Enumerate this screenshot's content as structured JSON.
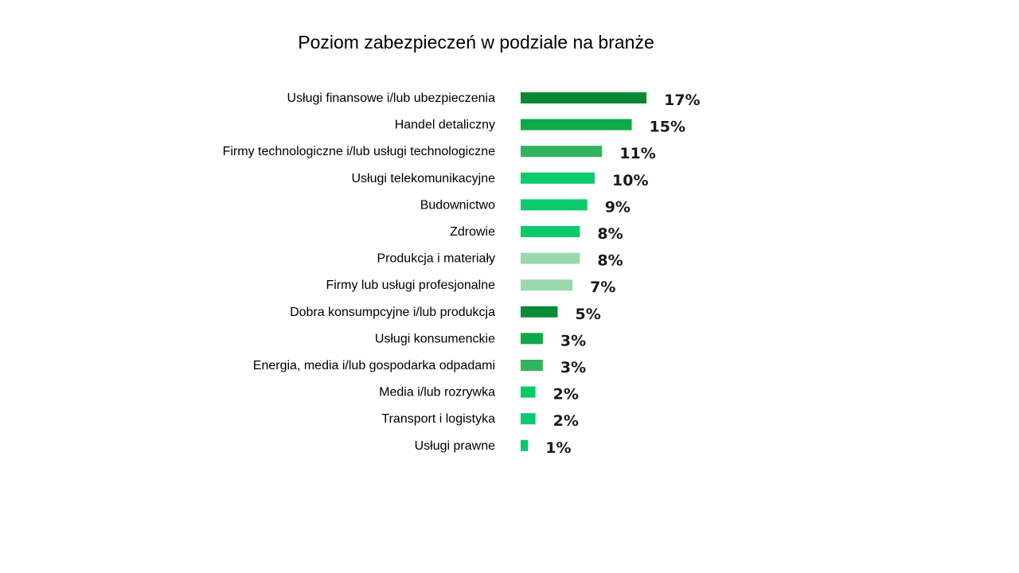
{
  "chart_data": {
    "type": "bar",
    "orientation": "horizontal",
    "title": "Poziom zabezpieczeń w podziale na branże",
    "xlabel": "",
    "ylabel": "",
    "xlim": [
      0,
      17
    ],
    "grid": false,
    "legend": "none",
    "categories": [
      "Usługi finansowe i/lub ubezpieczenia",
      "Handel detaliczny",
      "Firmy technologiczne i/lub usługi technologiczne",
      "Usługi telekomunikacyjne",
      "Budownictwo",
      "Zdrowie",
      "Produkcja i materiały",
      "Firmy lub usługi profesjonalne",
      "Dobra konsumpcyjne i/lub produkcja",
      "Usługi konsumenckie",
      "Energia, media i/lub gospodarka odpadami",
      "Media i/lub rozrywka",
      "Transport i logistyka",
      "Usługi prawne"
    ],
    "values": [
      17,
      15,
      11,
      10,
      9,
      8,
      8,
      7,
      5,
      3,
      3,
      2,
      2,
      1
    ],
    "value_labels": [
      "17%",
      "15%",
      "11%",
      "10%",
      "9%",
      "8%",
      "8%",
      "7%",
      "5%",
      "3%",
      "3%",
      "2%",
      "2%",
      "1%"
    ],
    "colors": [
      "#0a8a32",
      "#0daa48",
      "#32b35e",
      "#0cc96a",
      "#0cc96a",
      "#0cc96a",
      "#9ad9ad",
      "#9ad9ad",
      "#0a8a32",
      "#0daa48",
      "#32b35e",
      "#0cc96a",
      "#0cc96a",
      "#0cc96a"
    ]
  }
}
